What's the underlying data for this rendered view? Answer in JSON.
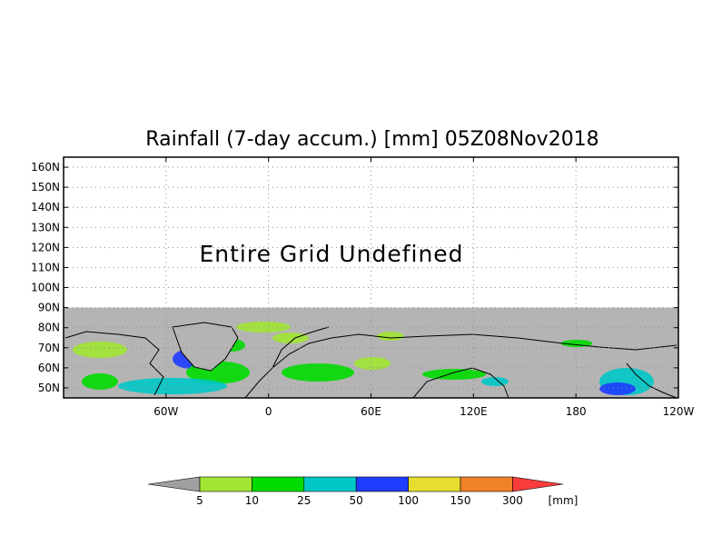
{
  "title": "Rainfall (7-day accum.) [mm] 05Z08Nov2018",
  "notice": "Entire Grid Undefined",
  "map": {
    "lat_range": [
      45,
      165
    ],
    "lon_range": [
      -120,
      240
    ],
    "data_lat_top": 90,
    "lat_ticks": [
      "160N",
      "150N",
      "140N",
      "130N",
      "120N",
      "110N",
      "100N",
      "90N",
      "80N",
      "70N",
      "60N",
      "50N"
    ],
    "lat_tick_values": [
      160,
      150,
      140,
      130,
      120,
      110,
      100,
      90,
      80,
      70,
      60,
      50
    ],
    "lon_ticks": [
      "60W",
      "0",
      "60E",
      "120E",
      "180",
      "120W"
    ],
    "lon_tick_values": [
      -60,
      0,
      60,
      120,
      180,
      240
    ],
    "grid": true,
    "colors": {
      "no_data": "#ffffff",
      "land_fill": "#b4b4b4",
      "coast": "#000000"
    }
  },
  "colorbar": {
    "unit": "[mm]",
    "labels": [
      "5",
      "10",
      "25",
      "50",
      "100",
      "150",
      "300"
    ],
    "colors": [
      "#a0a0a0",
      "#a0e632",
      "#00dc00",
      "#00c8c8",
      "#1e3cff",
      "#e6dc32",
      "#f08228",
      "#fa3c3c"
    ]
  }
}
